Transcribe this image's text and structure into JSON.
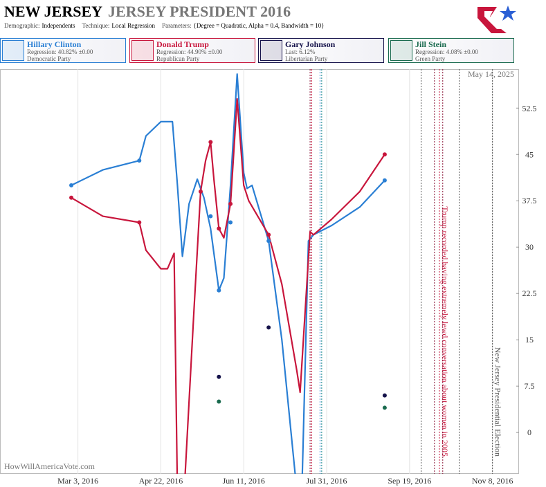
{
  "chart_data": {
    "type": "line",
    "title": "NEW JERSEY",
    "subtitle": "JERSEY PRESIDENT 2016",
    "parameters": [
      {
        "label": "Demographic:",
        "value": "Independents"
      },
      {
        "label": "Technique:",
        "value": "Local Regression"
      },
      {
        "label": "Parameters:",
        "value": "{Degree = Quadratic, Alpha = 0.4, Bandwidth = 10}"
      }
    ],
    "date_stamp": "May 14, 2025",
    "source": "HowWillAmericaVote.com",
    "xlim": [
      "2016-01-16",
      "2016-11-24"
    ],
    "xticks": [
      {
        "value": "2016-03-03",
        "label": "Mar 3, 2016"
      },
      {
        "value": "2016-04-22",
        "label": "Apr 22, 2016"
      },
      {
        "value": "2016-06-11",
        "label": "Jun 11, 2016"
      },
      {
        "value": "2016-07-31",
        "label": "Jul 31, 2016"
      },
      {
        "value": "2016-09-19",
        "label": "Sep 19, 2016"
      },
      {
        "value": "2016-11-08",
        "label": "Nov 8, 2016"
      }
    ],
    "ylim": [
      -6.7,
      58.8
    ],
    "yticks": [
      0,
      7.5,
      15,
      22.5,
      30,
      37.5,
      45,
      52.5
    ],
    "grid": true,
    "series": [
      {
        "name": "Hillary Clinton",
        "stat": "Regression: 40.82% ±0.00",
        "party": "Democratic Party",
        "color": "#2a7fd4",
        "x": [
          "2016-02-28",
          "2016-04-09",
          "2016-05-22",
          "2016-05-27",
          "2016-06-03",
          "2016-06-26",
          "2016-09-04"
        ],
        "values": [
          40,
          44,
          35,
          23,
          34,
          31,
          40.8
        ],
        "trend_x": [
          "2016-02-28",
          "2016-03-18",
          "2016-04-09",
          "2016-04-13",
          "2016-04-22",
          "2016-04-29",
          "2016-05-02",
          "2016-05-05",
          "2016-05-09",
          "2016-05-14",
          "2016-05-18",
          "2016-05-22",
          "2016-05-27",
          "2016-05-30",
          "2016-06-03",
          "2016-06-07",
          "2016-06-11",
          "2016-06-13",
          "2016-06-16",
          "2016-06-26",
          "2016-07-04",
          "2016-07-12",
          "2016-07-16",
          "2016-07-20",
          "2016-07-23",
          "2016-08-03",
          "2016-08-20",
          "2016-09-04"
        ],
        "trend_values": [
          40,
          42.5,
          44,
          48,
          50.3,
          50.3,
          40,
          28.5,
          37,
          41,
          38,
          33,
          23,
          25,
          40,
          58,
          42,
          39.5,
          40,
          31,
          15,
          -6.7,
          -10,
          31,
          32,
          33.5,
          36.5,
          40.8
        ]
      },
      {
        "name": "Donald Trump",
        "stat": "Regression: 44.90% ±0.00",
        "party": "Republican Party",
        "color": "#c8163c",
        "x": [
          "2016-02-28",
          "2016-04-09",
          "2016-05-16",
          "2016-05-22",
          "2016-05-27",
          "2016-06-03",
          "2016-06-26",
          "2016-09-04"
        ],
        "values": [
          38,
          34,
          39,
          47,
          33,
          37,
          32,
          45
        ],
        "trend_x": [
          "2016-02-28",
          "2016-03-18",
          "2016-04-09",
          "2016-04-13",
          "2016-04-22",
          "2016-04-26",
          "2016-04-30",
          "2016-05-02",
          "2016-05-06",
          "2016-05-12",
          "2016-05-16",
          "2016-05-19",
          "2016-05-22",
          "2016-05-24",
          "2016-05-27",
          "2016-05-30",
          "2016-06-03",
          "2016-06-07",
          "2016-06-11",
          "2016-06-14",
          "2016-06-26",
          "2016-07-04",
          "2016-07-13",
          "2016-07-15",
          "2016-07-21",
          "2016-07-23",
          "2016-08-03",
          "2016-08-20",
          "2016-09-04"
        ],
        "trend_values": [
          38,
          35,
          34,
          29.5,
          26.5,
          26.5,
          29,
          -10,
          -10,
          20,
          39,
          44,
          47,
          41,
          33,
          31.5,
          37,
          54,
          40,
          37.5,
          32,
          24,
          10,
          6.5,
          32.5,
          32,
          34.5,
          39,
          45
        ]
      },
      {
        "name": "Gary Johnson",
        "stat": "Last: 6.12%",
        "party": "Libertarian Party",
        "color": "#15124a",
        "x": [
          "2016-05-27",
          "2016-06-26",
          "2016-09-04"
        ],
        "values": [
          9,
          17,
          6
        ]
      },
      {
        "name": "Jill Stein",
        "stat": "Regression: 4.08% ±0.00",
        "party": "Green Party",
        "color": "#1a6b4f",
        "x": [
          "2016-05-27",
          "2016-09-04"
        ],
        "values": [
          5,
          4
        ]
      }
    ],
    "events": [
      {
        "date": "2016-07-21",
        "color": "#8a1538",
        "label": null
      },
      {
        "date": "2016-07-22",
        "color": "#c8163c",
        "label": null
      },
      {
        "date": "2016-07-27",
        "color": "#2a7fd4",
        "label": null
      },
      {
        "date": "2016-07-28",
        "color": "#1a8a8a",
        "label": null
      },
      {
        "date": "2016-09-26",
        "color": "#555555",
        "label": null
      },
      {
        "date": "2016-10-04",
        "color": "#8a1538",
        "label": null
      },
      {
        "date": "2016-10-07",
        "color": "#c8163c",
        "label": "Trump recorded having extremely lewd conversation about women in 2005"
      },
      {
        "date": "2016-10-09",
        "color": "#8a1538",
        "label": null
      },
      {
        "date": "2016-10-19",
        "color": "#555555",
        "label": null
      },
      {
        "date": "2016-11-08",
        "color": "#555555",
        "label": "New Jersey Presidential Election"
      }
    ]
  }
}
